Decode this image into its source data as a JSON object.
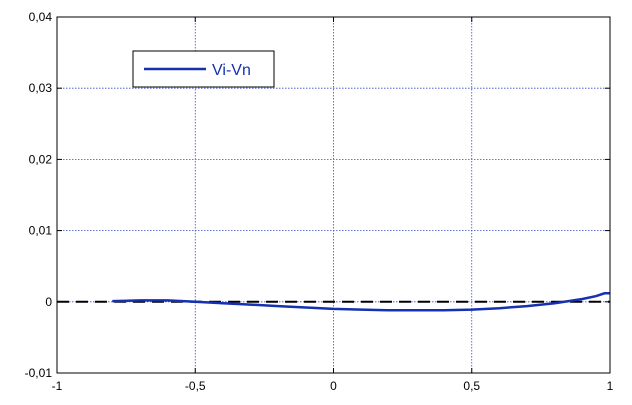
{
  "chart_data": {
    "type": "line",
    "xlim": [
      -1,
      1
    ],
    "ylim": [
      -0.01,
      0.04
    ],
    "x_ticks": [
      -1,
      -0.5,
      0,
      0.5,
      1
    ],
    "x_tick_labels": [
      "-1",
      "-0,5",
      "0",
      "0,5",
      "1"
    ],
    "y_ticks": [
      -0.01,
      0,
      0.01,
      0.02,
      0.03,
      0.04
    ],
    "y_tick_labels": [
      "-0,01",
      "0",
      "0,01",
      "0,02",
      "0,03",
      "0,04"
    ],
    "grid": true,
    "legend": {
      "placement": "top-left",
      "entries": [
        "Vi-Vn"
      ]
    },
    "series": [
      {
        "name": "Vi-Vn",
        "color": "#1530b0",
        "x": [
          -0.8,
          -0.7,
          -0.6,
          -0.5,
          -0.4,
          -0.3,
          -0.2,
          -0.1,
          0,
          0.1,
          0.2,
          0.3,
          0.4,
          0.5,
          0.6,
          0.7,
          0.8,
          0.85,
          0.9,
          0.95,
          0.98,
          1.0
        ],
        "y": [
          0.0001,
          0.0002,
          0.0002,
          0.0,
          -0.0002,
          -0.0004,
          -0.0006,
          -0.0008,
          -0.001,
          -0.0011,
          -0.0012,
          -0.0012,
          -0.0012,
          -0.0011,
          -0.0009,
          -0.0006,
          -0.0002,
          0.0001,
          0.0004,
          0.0008,
          0.0012,
          0.0012
        ]
      }
    ],
    "reference_line": {
      "y": 0,
      "style": "dashed",
      "color": "#000000"
    }
  }
}
